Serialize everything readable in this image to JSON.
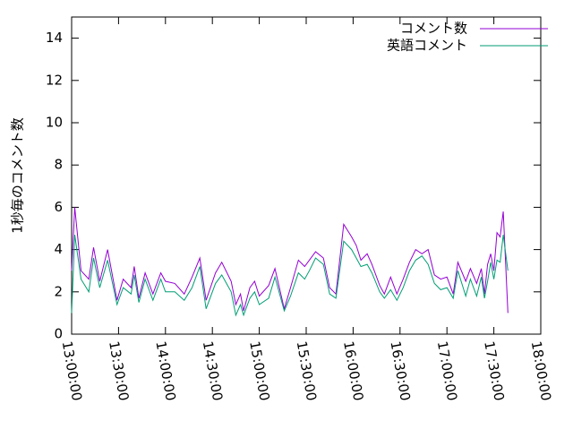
{
  "chart_data": {
    "type": "line",
    "ylabel": "1秒毎のコメント数",
    "x": [
      "13:00:00",
      "13:02:00",
      "13:06:00",
      "13:11:00",
      "13:14:00",
      "13:18:00",
      "13:23:00",
      "13:29:00",
      "13:33:00",
      "13:38:00",
      "13:40:00",
      "13:43:00",
      "13:47:00",
      "13:52:00",
      "13:57:00",
      "14:00:00",
      "14:06:00",
      "14:12:00",
      "14:17:00",
      "14:22:00",
      "14:26:00",
      "14:32:00",
      "14:36:00",
      "14:42:00",
      "14:45:00",
      "14:48:00",
      "14:50:00",
      "14:54:00",
      "14:57:00",
      "15:00:00",
      "15:06:00",
      "15:10:00",
      "15:16:00",
      "15:20:00",
      "15:25:00",
      "15:29:00",
      "15:32:00",
      "15:36:00",
      "15:41:00",
      "15:45:00",
      "15:49:00",
      "15:54:00",
      "15:59:00",
      "16:02:00",
      "16:05:00",
      "16:09:00",
      "16:12:00",
      "16:17:00",
      "16:20:00",
      "16:24:00",
      "16:28:00",
      "16:32:00",
      "16:36:00",
      "16:40:00",
      "16:44:00",
      "16:48:00",
      "16:52:00",
      "16:56:00",
      "17:00:00",
      "17:04:00",
      "17:07:00",
      "17:12:00",
      "17:15:00",
      "17:19:00",
      "17:22:00",
      "17:24:00",
      "17:26:00",
      "17:28:00",
      "17:30:00",
      "17:32:00",
      "17:34:00",
      "17:36:00",
      "17:39:00"
    ],
    "series": [
      {
        "name": "コメント数",
        "color": "#9400d3",
        "values": [
          3.0,
          6.0,
          3.0,
          2.6,
          4.1,
          2.5,
          4.0,
          1.6,
          2.6,
          2.2,
          3.2,
          1.7,
          2.9,
          1.9,
          2.9,
          2.5,
          2.4,
          1.9,
          2.7,
          3.6,
          1.6,
          2.9,
          3.4,
          2.5,
          1.4,
          1.9,
          1.1,
          2.2,
          2.5,
          1.8,
          2.3,
          3.1,
          1.2,
          2.2,
          3.5,
          3.2,
          3.5,
          3.9,
          3.6,
          2.2,
          1.9,
          5.2,
          4.6,
          4.2,
          3.5,
          3.8,
          3.3,
          2.3,
          1.9,
          2.7,
          1.9,
          2.6,
          3.4,
          4.0,
          3.8,
          4.0,
          2.8,
          2.6,
          2.7,
          1.9,
          3.4,
          2.5,
          3.1,
          2.4,
          3.1,
          1.9,
          3.3,
          3.8,
          3.0,
          4.8,
          4.6,
          5.8,
          1.0
        ]
      },
      {
        "name": "英語コメント",
        "color": "#009e73",
        "values": [
          1.0,
          4.7,
          2.6,
          2.0,
          3.6,
          2.2,
          3.5,
          1.4,
          2.2,
          1.9,
          2.8,
          1.5,
          2.6,
          1.6,
          2.6,
          2.0,
          2.0,
          1.6,
          2.2,
          3.2,
          1.2,
          2.4,
          2.8,
          2.0,
          0.9,
          1.4,
          0.9,
          1.7,
          2.0,
          1.4,
          1.7,
          2.7,
          1.1,
          1.8,
          2.9,
          2.6,
          3.0,
          3.6,
          3.3,
          1.9,
          1.7,
          4.4,
          4.0,
          3.6,
          3.2,
          3.3,
          2.9,
          2.0,
          1.7,
          2.1,
          1.6,
          2.2,
          3.0,
          3.5,
          3.7,
          3.3,
          2.4,
          2.1,
          2.2,
          1.7,
          3.0,
          1.8,
          2.6,
          1.8,
          2.7,
          1.7,
          2.5,
          3.4,
          2.6,
          3.5,
          3.4,
          4.7,
          3.0
        ]
      }
    ],
    "xlim": [
      "13:00:00",
      "18:00:00"
    ],
    "xticks": [
      "13:00:00",
      "13:30:00",
      "14:00:00",
      "14:30:00",
      "15:00:00",
      "15:30:00",
      "16:00:00",
      "16:30:00",
      "17:00:00",
      "17:30:00",
      "18:00:00"
    ],
    "ylim": [
      0,
      15
    ],
    "yticks": [
      0,
      2,
      4,
      6,
      8,
      10,
      12,
      14
    ],
    "legend": "upper right"
  }
}
